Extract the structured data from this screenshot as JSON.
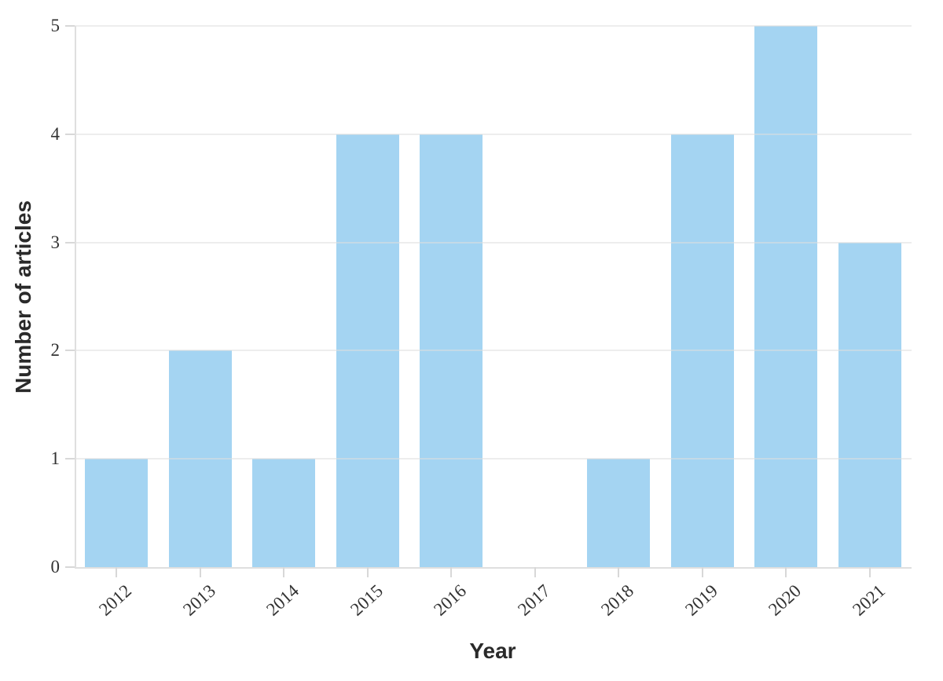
{
  "chart_data": {
    "type": "bar",
    "title": "",
    "categories": [
      "2012",
      "2013",
      "2014",
      "2015",
      "2016",
      "2017",
      "2018",
      "2019",
      "2020",
      "2021"
    ],
    "values": [
      1,
      2,
      1,
      4,
      4,
      0,
      1,
      4,
      5,
      3
    ],
    "xlabel": "Year",
    "ylabel": "Number of articles",
    "ylim": [
      0,
      5
    ],
    "yticks": [
      0,
      1,
      2,
      3,
      4,
      5
    ],
    "bar_color": "#A4D4F2",
    "gridline_color": "#ececec",
    "axis_line_color": "#dfdfdf",
    "tick_text_color": "#333333",
    "axis_title_color": "#2a2a2a",
    "grid": "horizontal gridlines on",
    "legend": "none"
  }
}
